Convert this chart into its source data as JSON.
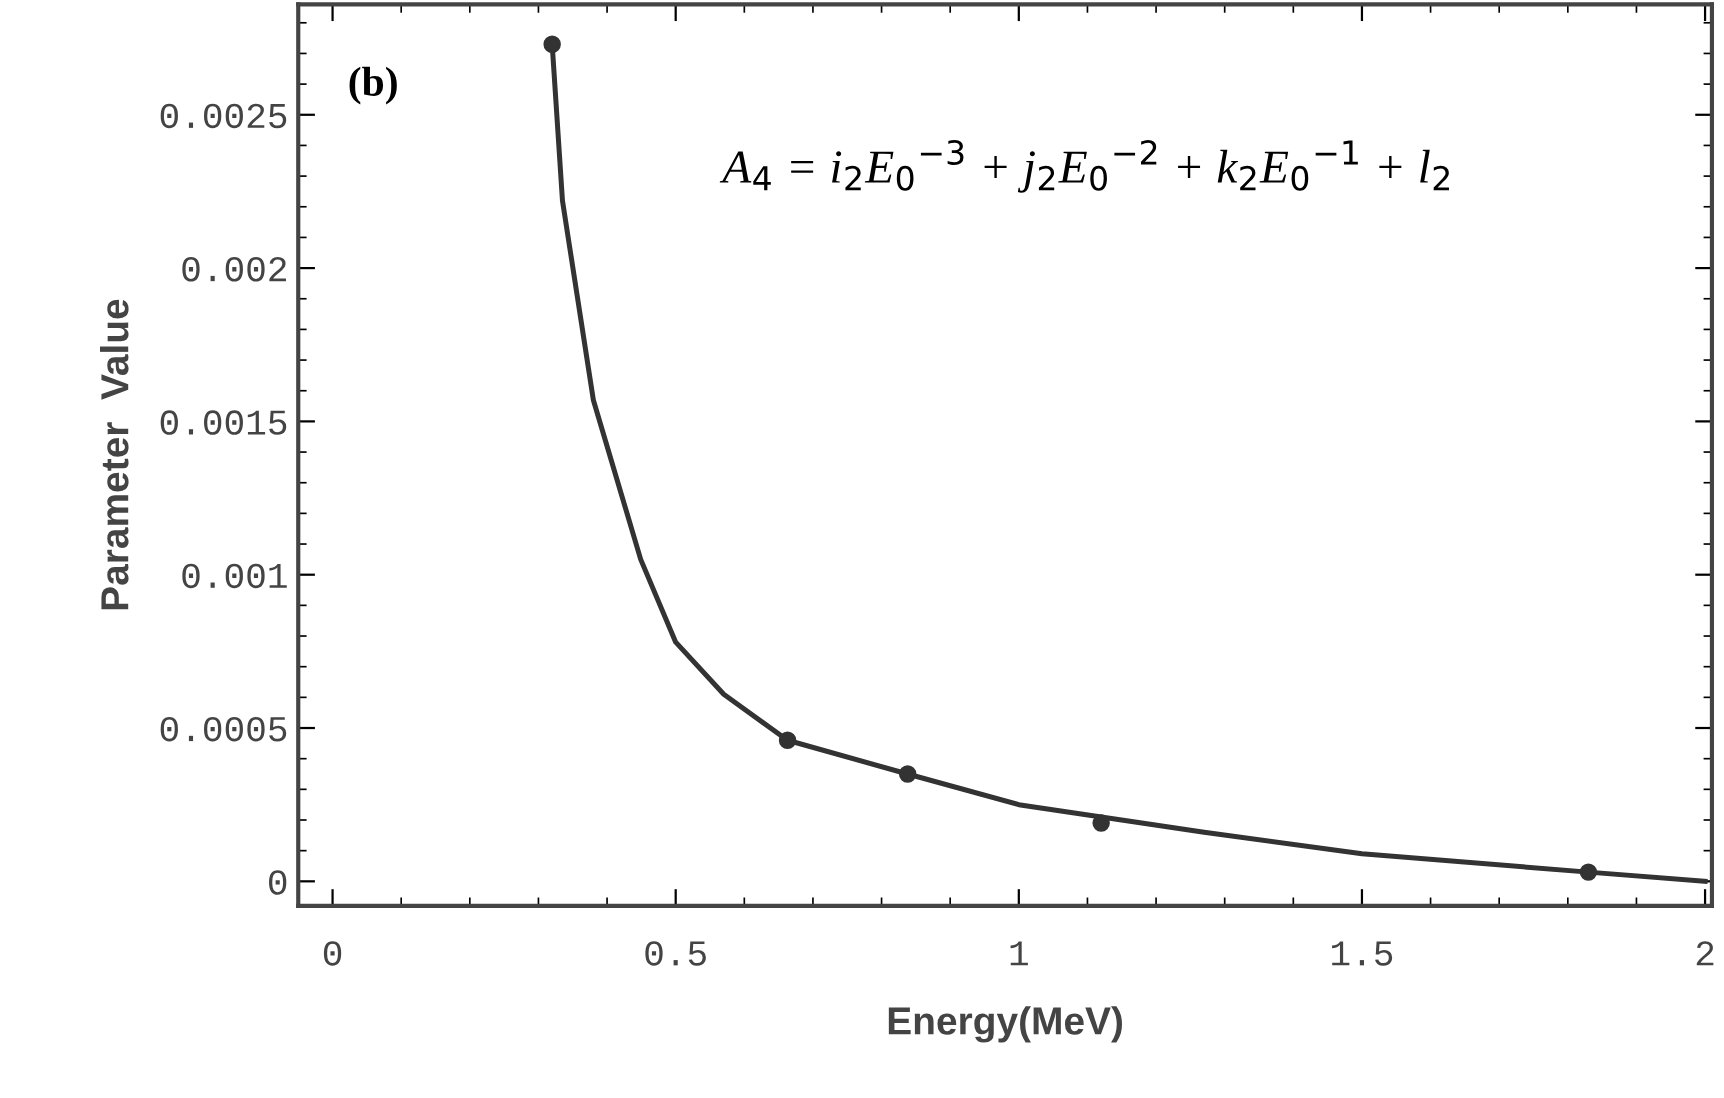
{
  "chart_data": {
    "type": "line",
    "xlabel": "Energy(MeV)",
    "ylabel": "Parameter  Value",
    "annotations": [
      "(b)",
      "A$_{4}$ = i$_{2}$E$_{0}$$^{−3}$ + j$_{2}$E$_{0}$$^{−2}$ + k$_{2}$E$_{0}$$^{−1}$ + l$_{2}$"
    ],
    "series": [
      {
        "color": "#333333",
        "marker": "none",
        "line_style": "solid",
        "x": [
          0.32,
          0.335,
          0.38,
          0.449,
          0.5,
          0.57,
          0.663,
          0.838,
          1.0,
          1.27,
          1.5,
          1.83,
          2.0
        ],
        "values": [
          0.00273,
          0.00222,
          0.00157,
          0.00105,
          0.00078,
          0.00061,
          0.00046,
          0.00035,
          0.00025,
          0.00016,
          9e-05,
          3e-05,
          0.0
        ]
      },
      {
        "type": "scatter",
        "color": "#333333",
        "marker": "circle",
        "x": [
          0.32,
          0.663,
          0.838,
          1.12,
          1.83
        ],
        "values": [
          0.00273,
          0.00046,
          0.00035,
          0.00019,
          3e-05
        ]
      }
    ],
    "xlim": [
      -0.05,
      2.01
    ],
    "ylim": [
      -8e-05,
      0.00286
    ],
    "xticks": [
      {
        "value": 0,
        "label": "0"
      },
      {
        "value": 0.5,
        "label": "0.5"
      },
      {
        "value": 1,
        "label": "1"
      },
      {
        "value": 1.5,
        "label": "1.5"
      },
      {
        "value": 2,
        "label": "2"
      }
    ],
    "yticks": [
      {
        "value": 0,
        "label": "0"
      },
      {
        "value": 0.0005,
        "label": "0.0005"
      },
      {
        "value": 0.001,
        "label": "0.001"
      },
      {
        "value": 0.0015,
        "label": "0.0015"
      },
      {
        "value": 0.002,
        "label": "0.002"
      },
      {
        "value": 0.0025,
        "label": "0.0025"
      }
    ],
    "grid": false,
    "legend": false
  }
}
